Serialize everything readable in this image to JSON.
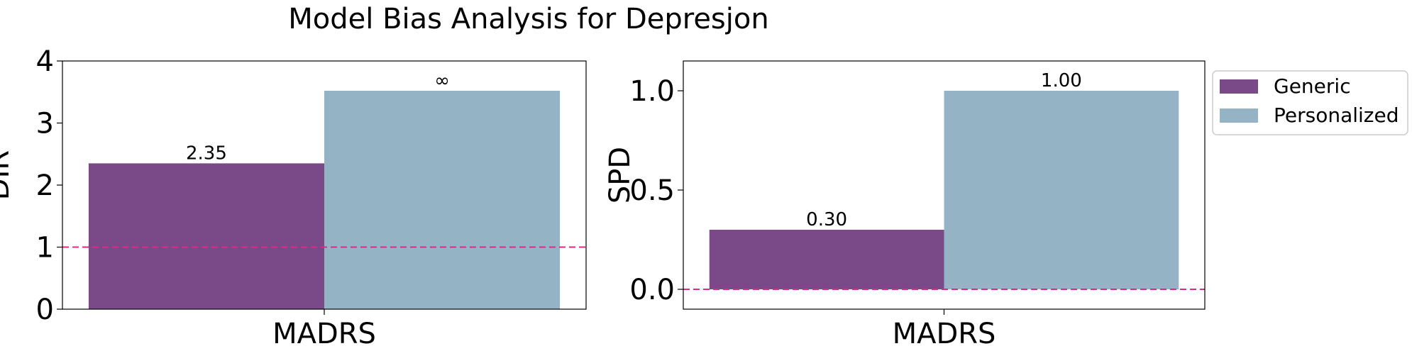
{
  "figure": {
    "suptitle": "Model Bias Analysis for Depresjon"
  },
  "colors": {
    "generic": "#7a4988",
    "personalized": "#94b3c5",
    "reference_line": "#e0288a"
  },
  "legend": {
    "placement": "right of second panel",
    "entries": [
      {
        "label": "Generic",
        "color": "#7a4988"
      },
      {
        "label": "Personalized",
        "color": "#94b3c5"
      }
    ]
  },
  "chart_data": [
    {
      "type": "bar",
      "categories": [
        "MADRS"
      ],
      "ylabel": "DIR",
      "xlabel": "",
      "ylim": [
        0,
        4
      ],
      "yticks": [
        "0",
        "1",
        "2",
        "3",
        "4"
      ],
      "reference_line": 1,
      "series": [
        {
          "name": "Generic",
          "values": [
            2.35
          ],
          "labels": [
            "2.35"
          ]
        },
        {
          "name": "Personalized",
          "values": [
            3.52
          ],
          "labels": [
            "∞"
          ]
        }
      ]
    },
    {
      "type": "bar",
      "categories": [
        "MADRS"
      ],
      "ylabel": "SPD",
      "xlabel": "",
      "ylim": [
        -0.1,
        1.15
      ],
      "yticks": [
        "0.0",
        "0.5",
        "1.0"
      ],
      "reference_line": 0,
      "series": [
        {
          "name": "Generic",
          "values": [
            0.3
          ],
          "labels": [
            "0.30"
          ]
        },
        {
          "name": "Personalized",
          "values": [
            1.0
          ],
          "labels": [
            "1.00"
          ]
        }
      ]
    }
  ]
}
